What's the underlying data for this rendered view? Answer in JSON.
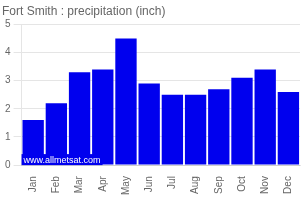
{
  "chart_data": {
    "type": "bar",
    "title": "Fort Smith : precipitation (inch)",
    "categories": [
      "Jan",
      "Feb",
      "Mar",
      "Apr",
      "May",
      "Jun",
      "Jul",
      "Aug",
      "Sep",
      "Oct",
      "Nov",
      "Dec"
    ],
    "values": [
      1.6,
      2.2,
      3.3,
      3.4,
      4.5,
      2.9,
      2.5,
      2.5,
      2.7,
      3.1,
      3.4,
      2.6
    ],
    "color": "#0000ee",
    "ylim": [
      0,
      5
    ],
    "yticks": [
      0,
      1,
      2,
      3,
      4,
      5
    ],
    "grid": true,
    "annotations": [
      "www.allmetsat.com"
    ]
  }
}
